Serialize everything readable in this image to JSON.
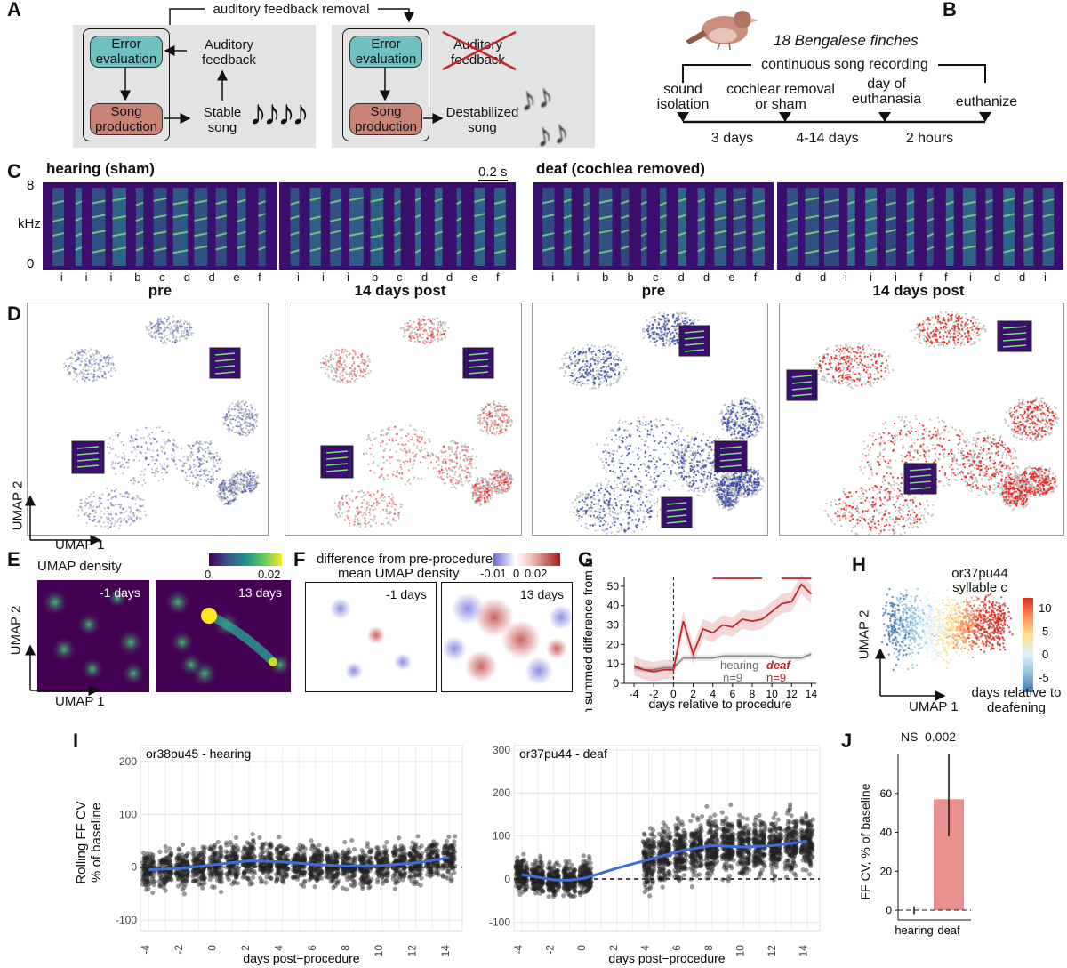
{
  "panel_a": {
    "letter": "A",
    "top_label": "auditory feedback removal",
    "left": {
      "error_box": "Error evaluation",
      "feedback": "Auditory feedback",
      "production_box": "Song production",
      "song": "Stable song"
    },
    "right": {
      "error_box": "Error evaluation",
      "feedback": "Auditory feedback",
      "production_box": "Song production",
      "song": "Destabilized song"
    },
    "colors": {
      "error": "#6ec1bf",
      "production": "#c98478",
      "box_bg": "#e3e3e3"
    }
  },
  "panel_b": {
    "letter": "B",
    "title": "18 Bengalese finches",
    "recording": "continuous song recording",
    "events": [
      "sound isolation",
      "cochlear removal or sham",
      "day of euthanasia",
      "euthanize"
    ],
    "durations": [
      "3 days",
      "4-14 days",
      "2 hours"
    ]
  },
  "panel_c": {
    "letter": "C",
    "hearing_title": "hearing (sham)",
    "deaf_title": "deaf (cochlea removed)",
    "scale_bar": "0.2 s",
    "y_top": "8",
    "y_unit": "kHz",
    "y_bottom": "0",
    "syllables_hearing_pre": [
      "i",
      "i",
      "i",
      "b",
      "c",
      "d",
      "d",
      "e",
      "f"
    ],
    "syllables_hearing_post": [
      "i",
      "i",
      "i",
      "b",
      "c",
      "d",
      "d",
      "e",
      "f"
    ],
    "syllables_deaf_pre": [
      "i",
      "i",
      "b",
      "b",
      "c",
      "d",
      "d",
      "e",
      "f"
    ],
    "syllables_deaf_post": [
      "d",
      "d",
      "i",
      "i",
      "i",
      "f",
      "f",
      "i",
      "d",
      "d",
      "i"
    ],
    "labels": [
      "pre",
      "14 days post",
      "pre",
      "14 days post"
    ]
  },
  "panel_d": {
    "letter": "D",
    "x_axis": "UMAP 1",
    "y_axis": "UMAP 2",
    "colors": {
      "pre": "#3b4fa8",
      "post": "#e8231e",
      "background": "#b8b8b8"
    }
  },
  "panel_e": {
    "letter": "E",
    "title": "UMAP density",
    "colorbar_min": "0",
    "colorbar_max": "0.02",
    "labels": [
      "-1 days",
      "13 days"
    ],
    "x_axis": "UMAP 1",
    "y_axis": "UMAP 2"
  },
  "panel_f": {
    "letter": "F",
    "title_line1": "difference from pre-procedure",
    "title_line2": "mean UMAP density",
    "colorbar_ticks": [
      "-0.01",
      "0",
      "0.02"
    ],
    "labels": [
      "-1 days",
      "13 days"
    ]
  },
  "panel_g": {
    "letter": "G",
    "legend_hearing": "hearing",
    "legend_deaf": "deaf",
    "n_hearing": "n=9",
    "n_deaf": "n=9"
  },
  "panel_h": {
    "letter": "H",
    "bird": "or37pu44",
    "syllable": "syllable c",
    "colorbar_ticks": [
      "10",
      "5",
      "0",
      "-5"
    ],
    "colorbar_label": "days relative to deafening",
    "x_axis": "UMAP 1",
    "y_axis": "UMAP 2"
  },
  "panel_i": {
    "letter": "I",
    "y_label_line1": "Rolling FF CV",
    "y_label_line2": "% of baseline"
  },
  "panel_j": {
    "letter": "J",
    "y_label": "FF CV, % of baseline",
    "ns_label": "NS",
    "p_label": "0.002"
  },
  "chart_data": [
    {
      "type": "line",
      "id": "G",
      "xlabel": "days relative to procedure",
      "ylabel": "mean summed difference from baseline",
      "xlim": [
        -5,
        14.5
      ],
      "ylim": [
        0,
        55
      ],
      "x_ticks": [
        -4,
        -2,
        0,
        2,
        4,
        6,
        8,
        10,
        12,
        14
      ],
      "y_ticks": [
        0,
        10,
        20,
        30,
        40,
        50
      ],
      "series": [
        {
          "name": "hearing",
          "color": "#8a8a8a",
          "x": [
            -4,
            -3,
            -2,
            -1,
            0,
            1,
            2,
            3,
            4,
            5,
            6,
            7,
            8,
            9,
            10,
            11,
            12,
            13,
            14
          ],
          "y": [
            8,
            7,
            7,
            8,
            8,
            13,
            13,
            13,
            13,
            14,
            14,
            14,
            14,
            14,
            14,
            13,
            13,
            13,
            15
          ]
        },
        {
          "name": "deaf",
          "color": "#c0282a",
          "x": [
            -4,
            -3,
            -2,
            -1,
            0,
            1,
            2,
            3,
            4,
            5,
            6,
            7,
            8,
            9,
            10,
            11,
            12,
            13,
            14
          ],
          "y": [
            9,
            7,
            6,
            7,
            7,
            32,
            15,
            28,
            26,
            30,
            29,
            33,
            32,
            33,
            37,
            41,
            42,
            51,
            46
          ]
        }
      ],
      "significance_bars": [
        [
          4,
          9
        ],
        [
          11,
          14
        ]
      ]
    },
    {
      "type": "scatter",
      "id": "I-hearing",
      "title": "or38pu45 - hearing",
      "xlabel": "days post−procedure",
      "ylabel": "Rolling FF CV % of baseline",
      "xlim": [
        -4.5,
        14.8
      ],
      "ylim": [
        -120,
        230
      ],
      "x_ticks": [
        -4,
        -2,
        0,
        2,
        4,
        6,
        8,
        10,
        12,
        14
      ],
      "y_ticks": [
        -100,
        0,
        100,
        200
      ],
      "trend_x": [
        -4,
        -2,
        0,
        2,
        4,
        6,
        8,
        10,
        12,
        14
      ],
      "trend_y": [
        -5,
        -2,
        5,
        12,
        10,
        5,
        2,
        3,
        8,
        18
      ]
    },
    {
      "type": "scatter",
      "id": "I-deaf",
      "title": "or37pu44 - deaf",
      "xlabel": "days post−procedure",
      "ylabel": "",
      "xlim": [
        -4.5,
        14.8
      ],
      "ylim": [
        -120,
        310
      ],
      "x_ticks": [
        -4,
        -2,
        0,
        2,
        4,
        6,
        8,
        10,
        12,
        14
      ],
      "y_ticks": [
        -100,
        0,
        100,
        200,
        300
      ],
      "trend_x": [
        -4,
        -2,
        -1,
        0,
        2,
        4,
        6,
        8,
        10,
        12,
        14
      ],
      "trend_y": [
        10,
        -2,
        -3,
        2,
        25,
        45,
        65,
        78,
        74,
        78,
        88
      ]
    },
    {
      "type": "bar",
      "id": "J",
      "categories": [
        "hearing",
        "deaf"
      ],
      "values": [
        0,
        57
      ],
      "error": [
        [
          -2,
          2
        ],
        [
          38,
          80
        ]
      ],
      "ylim": [
        -5,
        80
      ],
      "y_ticks": [
        0,
        20,
        40,
        60
      ],
      "colors": [
        "#d9d9d9",
        "#e8908f"
      ]
    }
  ]
}
